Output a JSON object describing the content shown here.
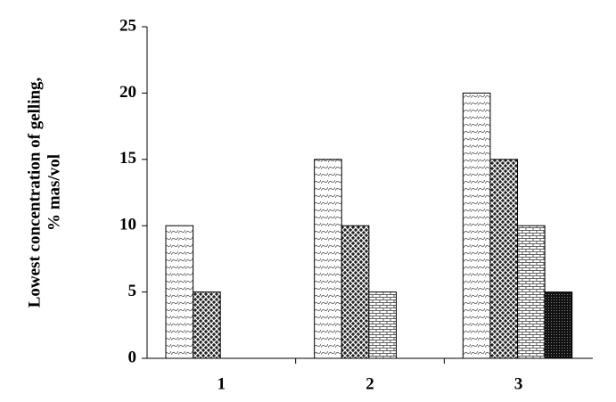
{
  "chart_data": {
    "type": "bar",
    "y_label": [
      "Lowest concentration of gelling,",
      "% mas/vol"
    ],
    "categories": [
      "1",
      "2",
      "3"
    ],
    "series": [
      {
        "values": [
          10,
          15,
          20
        ]
      },
      {
        "values": [
          5,
          10,
          15
        ]
      },
      {
        "values": [
          null,
          5,
          10
        ]
      },
      {
        "values": [
          null,
          null,
          5
        ]
      }
    ],
    "ylim": [
      0,
      25
    ],
    "yticks": [
      0,
      5,
      10,
      15,
      20,
      25
    ],
    "grid": false
  }
}
